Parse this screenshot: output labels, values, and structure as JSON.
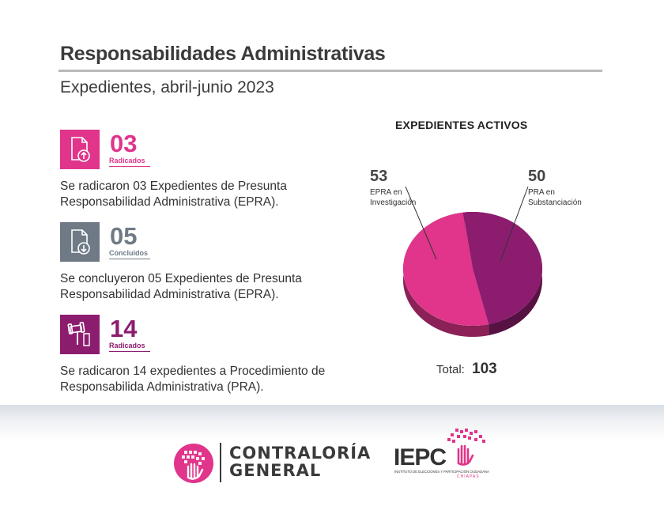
{
  "header": {
    "title": "Responsabilidades Administrativas",
    "subtitle": "Expedientes, abril-junio 2023"
  },
  "stats": [
    {
      "icon": "file-upload-icon",
      "number": "03",
      "label": "Radicados",
      "color": "#e0358a",
      "description": "Se radicaron 03 Expedientes de Presunta Responsabilidad Administrativa (EPRA)."
    },
    {
      "icon": "file-download-icon",
      "number": "05",
      "label": "Concluidos",
      "color": "#6f7a86",
      "description": "Se concluyeron 05 Expedientes de Presunta Responsabilidad Administrativa (EPRA)."
    },
    {
      "icon": "gavel-icon",
      "number": "14",
      "label": "Radicados",
      "color": "#8c1d6e",
      "description": "Se radicaron 14 expedientes a Procedimiento de Responsabilida Administrativa (PRA)."
    }
  ],
  "chart_data": {
    "type": "pie",
    "title": "EXPEDIENTES ACTIVOS",
    "slices": [
      {
        "label": "EPRA en Investigación",
        "value": 53,
        "color": "#e0358a"
      },
      {
        "label": "PRA en Substanciación",
        "value": 50,
        "color": "#8c1d6e"
      }
    ],
    "total_label": "Total:",
    "total": 103
  },
  "footer": {
    "logo_cg_line1": "CONTRALORÍA",
    "logo_cg_line2": "GENERAL",
    "logo_iepc": "IEPC",
    "logo_iepc_subtitle": "INSTITUTO DE ELECCIONES Y PARTICIPACIÓN CIUDADANA",
    "logo_iepc_state": "CHIAPAS"
  }
}
